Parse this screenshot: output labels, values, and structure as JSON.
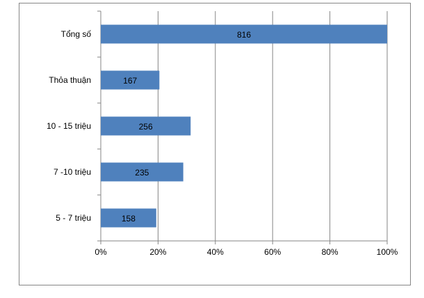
{
  "chart_data": {
    "type": "bar",
    "orientation": "horizontal",
    "categories": [
      "Tổng số",
      "Thỏa thuận",
      "10 - 15 triệu",
      "7 -10 triệu",
      "5 - 7 triệu"
    ],
    "values": [
      816,
      167,
      256,
      235,
      158
    ],
    "data_labels": [
      "816",
      "167",
      "256",
      "235",
      "158"
    ],
    "x_ticks": [
      "0%",
      "20%",
      "40%",
      "60%",
      "80%",
      "100%"
    ],
    "xlim": [
      0,
      100
    ],
    "title": "",
    "xlabel": "",
    "ylabel": "",
    "grid": true,
    "legend": "none",
    "bar_color": "#4F81BD"
  }
}
